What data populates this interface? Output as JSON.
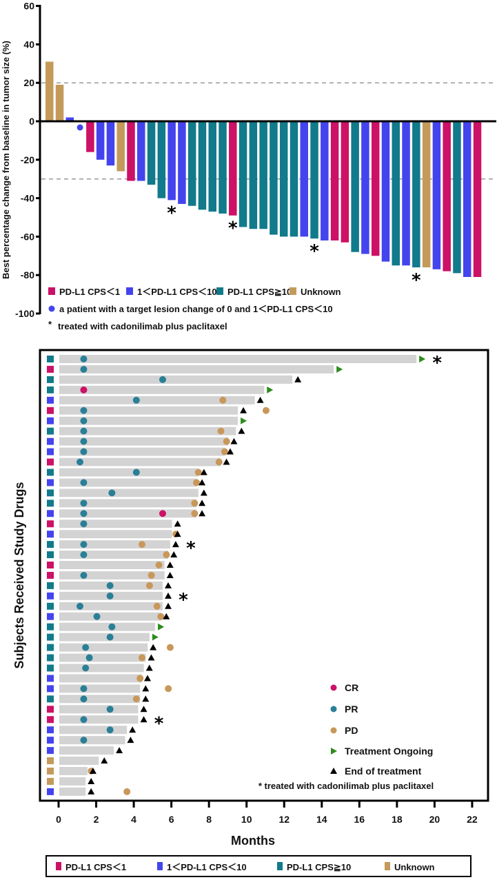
{
  "colors": {
    "cps_lt1": "#CC1166",
    "cps_1_10": "#4444EE",
    "cps_ge10": "#117A8B",
    "unknown": "#C49A5A",
    "cr": "#CC1166",
    "pr": "#2A7F96",
    "pd": "#C8975A",
    "ongoing": "#2E8B1E",
    "end": "#000000",
    "swim_bar": "#D3D3D3",
    "ref_line": "#999999"
  },
  "chart_data": [
    {
      "type": "bar",
      "title": "",
      "xlabel": "",
      "ylabel": "Best percentage change from baseline in tumor size (%)",
      "ylim": [
        -100,
        60
      ],
      "yticks": [
        60,
        40,
        20,
        0,
        -20,
        -40,
        -60,
        -80,
        -100
      ],
      "reference_lines": [
        20,
        -30
      ],
      "grid": false,
      "legend_position": "bottom-left",
      "legend": [
        {
          "key": "cps_lt1",
          "label": "PD-L1 CPS＜1"
        },
        {
          "key": "cps_1_10",
          "label": "1＜PD-L1 CPS＜10"
        },
        {
          "key": "cps_ge10",
          "label": "PD-L1 CPS≧10"
        },
        {
          "key": "unknown",
          "label": "Unknown"
        }
      ],
      "dot_note": "a patient with a target lesion change of 0 and 1＜PD-L1 CPS＜10",
      "star_note": "treated with cadonilimab plus paclitaxel",
      "patients": [
        {
          "group": "unknown",
          "value": 31
        },
        {
          "group": "unknown",
          "value": 19
        },
        {
          "group": "cps_1_10",
          "value": 2
        },
        {
          "group": "cps_1_10",
          "value": 0,
          "dot": true
        },
        {
          "group": "cps_lt1",
          "value": -16
        },
        {
          "group": "cps_1_10",
          "value": -20
        },
        {
          "group": "cps_1_10",
          "value": -23
        },
        {
          "group": "unknown",
          "value": -26
        },
        {
          "group": "cps_lt1",
          "value": -31
        },
        {
          "group": "cps_1_10",
          "value": -31
        },
        {
          "group": "cps_ge10",
          "value": -33
        },
        {
          "group": "cps_ge10",
          "value": -40
        },
        {
          "group": "cps_1_10",
          "value": -41,
          "star": true
        },
        {
          "group": "cps_1_10",
          "value": -43
        },
        {
          "group": "cps_ge10",
          "value": -44
        },
        {
          "group": "cps_ge10",
          "value": -46
        },
        {
          "group": "cps_ge10",
          "value": -47
        },
        {
          "group": "cps_ge10",
          "value": -48
        },
        {
          "group": "cps_lt1",
          "value": -49,
          "star": true
        },
        {
          "group": "cps_ge10",
          "value": -55
        },
        {
          "group": "cps_ge10",
          "value": -56
        },
        {
          "group": "cps_ge10",
          "value": -56
        },
        {
          "group": "cps_ge10",
          "value": -59
        },
        {
          "group": "cps_ge10",
          "value": -60
        },
        {
          "group": "cps_ge10",
          "value": -60
        },
        {
          "group": "cps_1_10",
          "value": -60
        },
        {
          "group": "cps_ge10",
          "value": -61,
          "star": true
        },
        {
          "group": "cps_1_10",
          "value": -62
        },
        {
          "group": "cps_lt1",
          "value": -62
        },
        {
          "group": "cps_lt1",
          "value": -63
        },
        {
          "group": "cps_ge10",
          "value": -68
        },
        {
          "group": "cps_1_10",
          "value": -69
        },
        {
          "group": "cps_lt1",
          "value": -70
        },
        {
          "group": "cps_1_10",
          "value": -73
        },
        {
          "group": "cps_ge10",
          "value": -75
        },
        {
          "group": "cps_1_10",
          "value": -75
        },
        {
          "group": "cps_ge10",
          "value": -76,
          "star": true
        },
        {
          "group": "unknown",
          "value": -76
        },
        {
          "group": "cps_1_10",
          "value": -77
        },
        {
          "group": "cps_lt1",
          "value": -78
        },
        {
          "group": "cps_ge10",
          "value": -79
        },
        {
          "group": "cps_1_10",
          "value": -81
        },
        {
          "group": "cps_lt1",
          "value": -81
        }
      ]
    },
    {
      "type": "swimmer",
      "title": "",
      "xlabel": "Months",
      "ylabel": "Subjects Received Study Drugs",
      "xlim": [
        0,
        22
      ],
      "xticks": [
        0,
        2,
        4,
        6,
        8,
        10,
        12,
        14,
        16,
        18,
        20,
        22
      ],
      "grid": false,
      "legend_position": "bottom-right",
      "marker_legend": [
        {
          "key": "cr",
          "shape": "circle",
          "label": "CR"
        },
        {
          "key": "pr",
          "shape": "circle",
          "label": "PR"
        },
        {
          "key": "pd",
          "shape": "circle",
          "label": "PD"
        },
        {
          "key": "ongoing",
          "shape": "right-triangle",
          "label": "Treatment Ongoing"
        },
        {
          "key": "end",
          "shape": "up-triangle",
          "label": "End of treatment"
        }
      ],
      "star_note": "* treated with cadonilimab plus paclitaxel",
      "group_legend": [
        {
          "key": "cps_lt1",
          "label": "PD-L1 CPS＜1"
        },
        {
          "key": "cps_1_10",
          "label": "1＜PD-L1 CPS＜10"
        },
        {
          "key": "cps_ge10",
          "label": "PD-L1 CPS≧10"
        },
        {
          "key": "unknown",
          "label": "Unknown"
        }
      ],
      "subjects": [
        {
          "group": "cps_ge10",
          "duration": 19.0,
          "pr": 1.3,
          "status": "ongoing",
          "star": true
        },
        {
          "group": "cps_lt1",
          "duration": 14.6,
          "pr": 1.3,
          "status": "ongoing"
        },
        {
          "group": "cps_ge10",
          "duration": 12.4,
          "pr": 5.5,
          "status": "end"
        },
        {
          "group": "cps_ge10",
          "duration": 10.9,
          "cr": 1.3,
          "status": "ongoing"
        },
        {
          "group": "cps_1_10",
          "duration": 10.4,
          "pr": 4.1,
          "pd": 8.7,
          "status": "end"
        },
        {
          "group": "cps_lt1",
          "duration": 9.5,
          "pr": 1.3,
          "pd": 11.0,
          "status": "end"
        },
        {
          "group": "cps_1_10",
          "duration": 9.5,
          "pr": 1.3,
          "status": "ongoing"
        },
        {
          "group": "cps_ge10",
          "duration": 9.4,
          "pr": 1.3,
          "pd": 8.6,
          "status": "end"
        },
        {
          "group": "cps_1_10",
          "duration": 9.0,
          "pr": 1.3,
          "pd": 8.9,
          "status": "end"
        },
        {
          "group": "cps_1_10",
          "duration": 8.8,
          "pr": 1.3,
          "pd": 8.8,
          "status": "end"
        },
        {
          "group": "cps_lt1",
          "duration": 8.6,
          "pr": 1.1,
          "pd": 8.5,
          "status": "end"
        },
        {
          "group": "cps_ge10",
          "duration": 7.4,
          "pr": 4.1,
          "pd": 7.4,
          "status": "end"
        },
        {
          "group": "cps_1_10",
          "duration": 7.3,
          "pr": 1.3,
          "pd": 7.3,
          "status": "end"
        },
        {
          "group": "cps_ge10",
          "duration": 7.4,
          "pr": 2.8,
          "status": "end"
        },
        {
          "group": "cps_ge10",
          "duration": 7.3,
          "pr": 1.3,
          "pd": 7.2,
          "status": "end"
        },
        {
          "group": "cps_1_10",
          "duration": 7.3,
          "pr": 1.3,
          "cr": 5.5,
          "pd": 7.2,
          "status": "end"
        },
        {
          "group": "cps_lt1",
          "duration": 6.0,
          "pr": 1.3,
          "status": "end"
        },
        {
          "group": "cps_1_10",
          "duration": 6.0,
          "pd": 6.2,
          "status": "end"
        },
        {
          "group": "cps_ge10",
          "duration": 5.9,
          "pr": 1.3,
          "pd": 4.4,
          "status": "end",
          "star": true
        },
        {
          "group": "cps_ge10",
          "duration": 5.8,
          "pr": 1.3,
          "pd": 5.7,
          "status": "end"
        },
        {
          "group": "cps_lt1",
          "duration": 5.6,
          "pd": 5.3,
          "status": "end"
        },
        {
          "group": "cps_lt1",
          "duration": 5.6,
          "pr": 1.3,
          "pd": 4.9,
          "status": "end"
        },
        {
          "group": "cps_ge10",
          "duration": 5.5,
          "pr": 2.7,
          "pd": 4.8,
          "status": "end"
        },
        {
          "group": "cps_1_10",
          "duration": 5.5,
          "pr": 2.7,
          "status": "end",
          "star": true
        },
        {
          "group": "cps_ge10",
          "duration": 5.5,
          "pr": 1.1,
          "pd": 5.2,
          "status": "end"
        },
        {
          "group": "cps_1_10",
          "duration": 5.4,
          "pr": 2.0,
          "pd": 5.4,
          "status": "end"
        },
        {
          "group": "cps_ge10",
          "duration": 5.1,
          "pr": 2.8,
          "status": "ongoing"
        },
        {
          "group": "cps_ge10",
          "duration": 4.8,
          "pr": 2.7,
          "status": "ongoing"
        },
        {
          "group": "cps_ge10",
          "duration": 4.7,
          "pr": 1.4,
          "pd": 5.9,
          "status": "end"
        },
        {
          "group": "cps_ge10",
          "duration": 4.6,
          "pr": 1.6,
          "pd": 4.4,
          "status": "end"
        },
        {
          "group": "cps_ge10",
          "duration": 4.5,
          "pr": 1.4,
          "status": "end"
        },
        {
          "group": "cps_1_10",
          "duration": 4.4,
          "pd": 4.3,
          "status": "end"
        },
        {
          "group": "cps_1_10",
          "duration": 4.3,
          "pr": 1.3,
          "pd": 5.8,
          "status": "end"
        },
        {
          "group": "cps_ge10",
          "duration": 4.3,
          "pr": 1.3,
          "pd": 4.1,
          "status": "end"
        },
        {
          "group": "cps_lt1",
          "duration": 4.2,
          "pr": 2.7,
          "status": "end"
        },
        {
          "group": "cps_lt1",
          "duration": 4.2,
          "pr": 1.3,
          "status": "end",
          "star": true
        },
        {
          "group": "cps_1_10",
          "duration": 3.6,
          "pr": 2.7,
          "status": "end"
        },
        {
          "group": "cps_1_10",
          "duration": 3.5,
          "pr": 1.3,
          "status": "end"
        },
        {
          "group": "cps_1_10",
          "duration": 2.9,
          "status": "end"
        },
        {
          "group": "unknown",
          "duration": 2.1,
          "status": "end"
        },
        {
          "group": "unknown",
          "duration": 1.5,
          "pd": 1.7,
          "status": "end"
        },
        {
          "group": "unknown",
          "duration": 1.4,
          "status": "end"
        },
        {
          "group": "cps_1_10",
          "duration": 1.4,
          "pd": 3.6,
          "status": "end"
        }
      ]
    }
  ]
}
